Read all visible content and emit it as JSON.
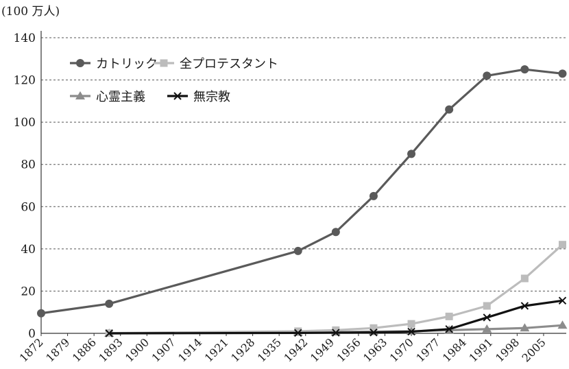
{
  "chart_data": {
    "type": "line",
    "ylabel": "(100 万人)",
    "ylim": [
      0,
      140
    ],
    "yticks": [
      0,
      20,
      40,
      60,
      80,
      100,
      120,
      140
    ],
    "grid": "horizontal-dashed",
    "legend_position": "top-left",
    "x_ticks": [
      "1872",
      "1879",
      "1886",
      "1893",
      "1900",
      "1907",
      "1914",
      "1921",
      "1928",
      "1935",
      "1942",
      "1949",
      "1956",
      "1963",
      "1970",
      "1977",
      "1984",
      "1991",
      "1998",
      "2005"
    ],
    "series": [
      {
        "name": "カトリック",
        "color": "#5a5a5a",
        "marker": "circle",
        "x": [
          1872,
          1890,
          1940,
          1950,
          1960,
          1970,
          1980,
          1990,
          2000,
          2010
        ],
        "y": [
          9.5,
          14,
          39,
          48,
          65,
          85,
          106,
          122,
          125,
          123
        ]
      },
      {
        "name": "全プロテスタント",
        "color": "#bcbcbc",
        "marker": "square",
        "x": [
          1890,
          1940,
          1950,
          1960,
          1970,
          1980,
          1990,
          2000,
          2010
        ],
        "y": [
          0.1,
          1,
          1.5,
          2.5,
          4.5,
          8,
          13,
          26,
          42
        ]
      },
      {
        "name": "心霊主義",
        "color": "#8c8c8c",
        "marker": "triangle",
        "x": [
          1890,
          1940,
          1950,
          1960,
          1970,
          1980,
          1990,
          2000,
          2010
        ],
        "y": [
          0,
          0.5,
          0.6,
          0.8,
          1,
          1.5,
          2,
          2.5,
          3.8
        ]
      },
      {
        "name": "無宗教",
        "color": "#111111",
        "marker": "x",
        "x": [
          1890,
          1940,
          1950,
          1960,
          1970,
          1980,
          1990,
          2000,
          2010
        ],
        "y": [
          0,
          0.2,
          0.3,
          0.4,
          0.8,
          2,
          7.5,
          13,
          15.5
        ]
      }
    ]
  }
}
